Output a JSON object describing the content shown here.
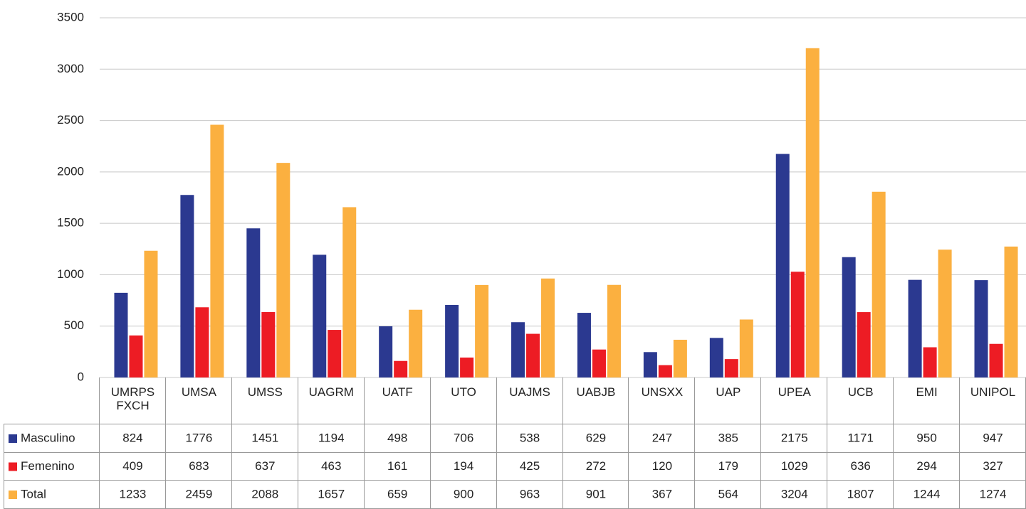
{
  "chart_data": {
    "type": "bar",
    "categories": [
      "UMRPS FXCH",
      "UMSA",
      "UMSS",
      "UAGRM",
      "UATF",
      "UTO",
      "UAJMS",
      "UABJB",
      "UNSXX",
      "UAP",
      "UPEA",
      "UCB",
      "EMI",
      "UNIPOL"
    ],
    "series": [
      {
        "name": "Masculino",
        "color": "#2b3990",
        "values": [
          824,
          1776,
          1451,
          1194,
          498,
          706,
          538,
          629,
          247,
          385,
          2175,
          1171,
          950,
          947
        ]
      },
      {
        "name": "Femenino",
        "color": "#ed1c24",
        "values": [
          409,
          683,
          637,
          463,
          161,
          194,
          425,
          272,
          120,
          179,
          1029,
          636,
          294,
          327
        ]
      },
      {
        "name": "Total",
        "color": "#fbb040",
        "values": [
          1233,
          2459,
          2088,
          1657,
          659,
          900,
          963,
          901,
          367,
          564,
          3204,
          1807,
          1244,
          1274
        ]
      }
    ],
    "ylim": [
      0,
      3500
    ],
    "yticks": [
      0,
      500,
      1000,
      1500,
      2000,
      2500,
      3000,
      3500
    ],
    "grid": true
  }
}
